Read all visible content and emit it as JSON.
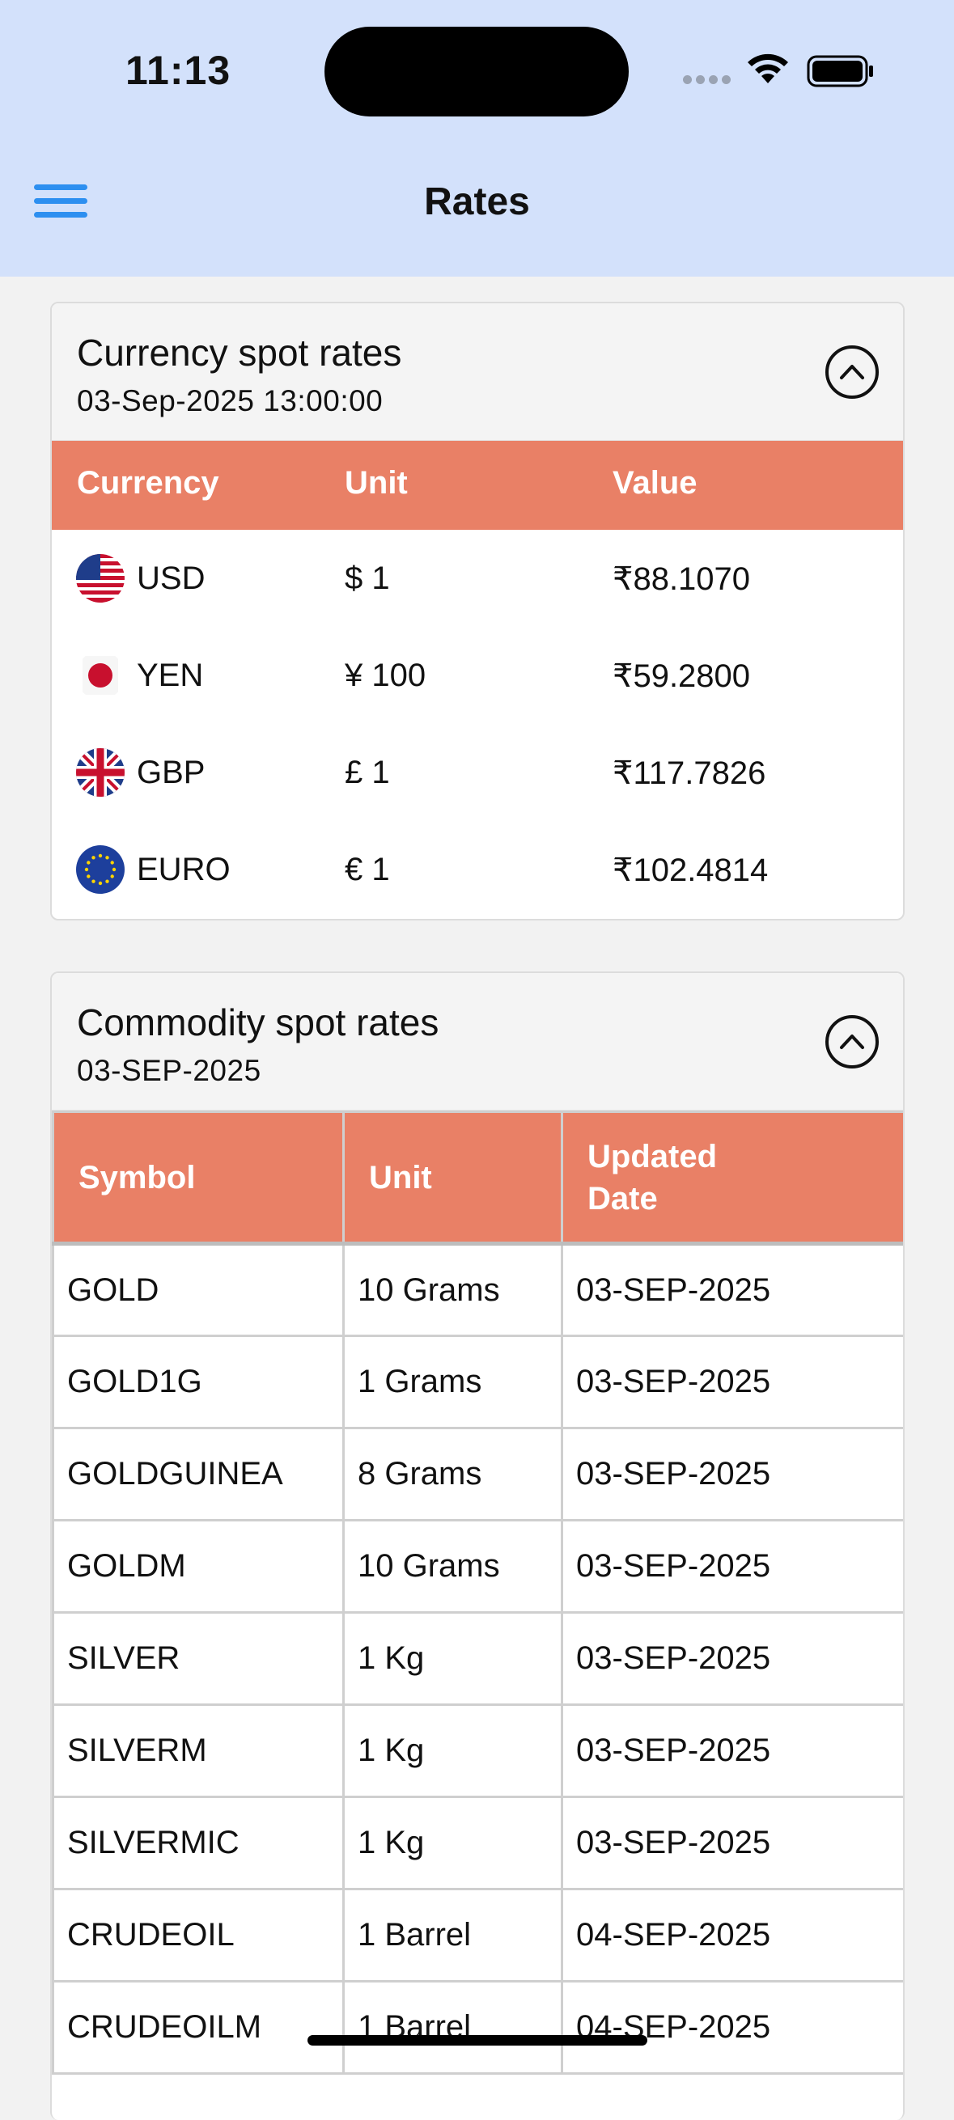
{
  "status_bar": {
    "time": "11:13"
  },
  "nav": {
    "title": "Rates"
  },
  "currency": {
    "title": "Currency spot rates",
    "timestamp": "03-Sep-2025 13:00:00",
    "headers": {
      "currency": "Currency",
      "unit": "Unit",
      "value": "Value"
    },
    "rows": [
      {
        "flag_icon": "us-flag-icon",
        "code": "USD",
        "unit": "$ 1",
        "value": "₹88.1070"
      },
      {
        "flag_icon": "japan-flag-icon",
        "code": "YEN",
        "unit": "¥ 100",
        "value": "₹59.2800"
      },
      {
        "flag_icon": "uk-flag-icon",
        "code": "GBP",
        "unit": "£ 1",
        "value": "₹117.7826"
      },
      {
        "flag_icon": "eu-flag-icon",
        "code": "EURO",
        "unit": "€ 1",
        "value": "₹102.4814"
      }
    ]
  },
  "commodity": {
    "title": "Commodity spot rates",
    "date": "03-SEP-2025",
    "headers": {
      "symbol": "Symbol",
      "unit": "Unit",
      "updated_line1": "Updated",
      "updated_line2": "Date"
    },
    "rows": [
      {
        "symbol": "GOLD",
        "unit": "10 Grams",
        "updated": "03-SEP-2025"
      },
      {
        "symbol": "GOLD1G",
        "unit": "1 Grams",
        "updated": "03-SEP-2025"
      },
      {
        "symbol": "GOLDGUINEA",
        "unit": "8 Grams",
        "updated": "03-SEP-2025"
      },
      {
        "symbol": "GOLDM",
        "unit": "10 Grams",
        "updated": "03-SEP-2025"
      },
      {
        "symbol": "SILVER",
        "unit": "1 Kg",
        "updated": "03-SEP-2025"
      },
      {
        "symbol": "SILVERM",
        "unit": "1 Kg",
        "updated": "03-SEP-2025"
      },
      {
        "symbol": "SILVERMIC",
        "unit": "1 Kg",
        "updated": "03-SEP-2025"
      },
      {
        "symbol": "CRUDEOIL",
        "unit": "1 Barrel",
        "updated": "04-SEP-2025"
      },
      {
        "symbol": "CRUDEOILM",
        "unit": "1 Barrel",
        "updated": "04-SEP-2025"
      }
    ]
  },
  "icons": {
    "menu": "hamburger-menu-icon",
    "collapse": "chevron-up-circle-icon",
    "wifi": "wifi-icon",
    "battery": "battery-icon",
    "signal": "cellular-signal-icon"
  },
  "colors": {
    "nav_background": "#d3e1fb",
    "table_header": "#e98066",
    "menu_accent": "#2d8ff0"
  }
}
